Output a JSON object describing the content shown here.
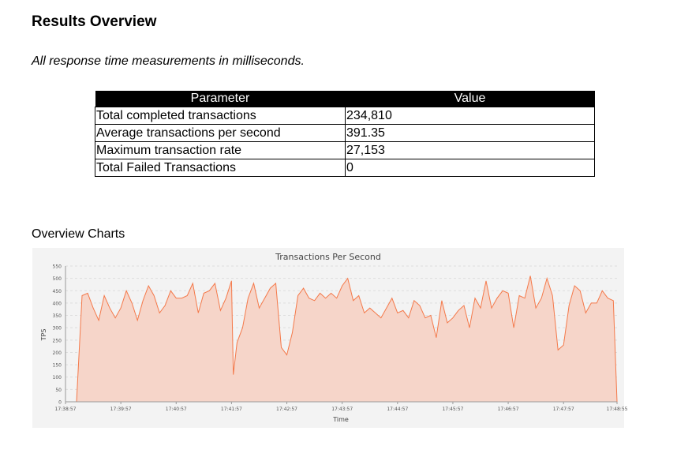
{
  "title": "Results Overview",
  "note": "All response time measurements in milliseconds.",
  "table": {
    "headers": [
      "Parameter",
      "Value"
    ],
    "rows": [
      [
        "Total completed transactions",
        "234,810"
      ],
      [
        "Average transactions per second",
        "391.35"
      ],
      [
        "Maximum transaction rate",
        "27,153"
      ],
      [
        "Total Failed Transactions",
        "0"
      ]
    ]
  },
  "charts_label": "Overview Charts",
  "chart_data": {
    "type": "area",
    "title": "Transactions Per Second",
    "xlabel": "Time",
    "ylabel": "TPS",
    "ylim": [
      0,
      550
    ],
    "yticks": [
      0,
      50,
      100,
      150,
      200,
      250,
      300,
      350,
      400,
      450,
      500,
      550
    ],
    "xticks": [
      "17:38:57",
      "17:39:57",
      "17:40:57",
      "17:41:57",
      "17:42:57",
      "17:43:57",
      "17:44:57",
      "17:45:57",
      "17:46:57",
      "17:47:57",
      "17:48:55"
    ],
    "xlim": [
      "17:38:57",
      "17:48:55"
    ],
    "grid": true,
    "color": "#f4794a",
    "fill": "#f6d5c9",
    "x": [
      "17:38:57",
      "17:39:03",
      "17:39:09",
      "17:39:15",
      "17:39:21",
      "17:39:27",
      "17:39:33",
      "17:39:39",
      "17:39:45",
      "17:39:51",
      "17:39:57",
      "17:40:03",
      "17:40:09",
      "17:40:15",
      "17:40:21",
      "17:40:27",
      "17:40:33",
      "17:40:39",
      "17:40:45",
      "17:40:51",
      "17:40:57",
      "17:41:03",
      "17:41:09",
      "17:41:15",
      "17:41:21",
      "17:41:27",
      "17:41:33",
      "17:41:39",
      "17:41:45",
      "17:41:51",
      "17:41:57",
      "17:41:59",
      "17:42:03",
      "17:42:09",
      "17:42:15",
      "17:42:21",
      "17:42:27",
      "17:42:33",
      "17:42:39",
      "17:42:45",
      "17:42:51",
      "17:42:57",
      "17:43:03",
      "17:43:09",
      "17:43:15",
      "17:43:21",
      "17:43:27",
      "17:43:33",
      "17:43:39",
      "17:43:45",
      "17:43:51",
      "17:43:57",
      "17:44:03",
      "17:44:09",
      "17:44:15",
      "17:44:21",
      "17:44:27",
      "17:44:33",
      "17:44:39",
      "17:44:45",
      "17:44:51",
      "17:44:57",
      "17:45:03",
      "17:45:09",
      "17:45:15",
      "17:45:21",
      "17:45:27",
      "17:45:33",
      "17:45:39",
      "17:45:45",
      "17:45:51",
      "17:45:57",
      "17:46:03",
      "17:46:09",
      "17:46:15",
      "17:46:21",
      "17:46:27",
      "17:46:33",
      "17:46:39",
      "17:46:45",
      "17:46:51",
      "17:46:57",
      "17:47:03",
      "17:47:09",
      "17:47:15",
      "17:47:21",
      "17:47:27",
      "17:47:33",
      "17:47:39",
      "17:47:45",
      "17:47:51",
      "17:47:57",
      "17:48:03",
      "17:48:09",
      "17:48:15",
      "17:48:21",
      "17:48:27",
      "17:48:33",
      "17:48:39",
      "17:48:45",
      "17:48:51",
      "17:48:55"
    ],
    "values": [
      0,
      0,
      0,
      430,
      440,
      380,
      330,
      430,
      380,
      340,
      380,
      450,
      400,
      330,
      410,
      470,
      430,
      360,
      390,
      450,
      420,
      420,
      430,
      480,
      360,
      440,
      450,
      480,
      370,
      420,
      490,
      110,
      240,
      300,
      420,
      480,
      380,
      420,
      460,
      480,
      220,
      190,
      280,
      430,
      460,
      420,
      410,
      440,
      420,
      440,
      420,
      470,
      500,
      410,
      430,
      360,
      380,
      360,
      340,
      380,
      420,
      360,
      370,
      340,
      410,
      390,
      340,
      350,
      260,
      410,
      320,
      340,
      370,
      390,
      300,
      420,
      380,
      490,
      380,
      420,
      450,
      440,
      300,
      430,
      420,
      510,
      380,
      420,
      500,
      430,
      210,
      230,
      390,
      470,
      450,
      360,
      400,
      400,
      450,
      420,
      410,
      0
    ]
  }
}
